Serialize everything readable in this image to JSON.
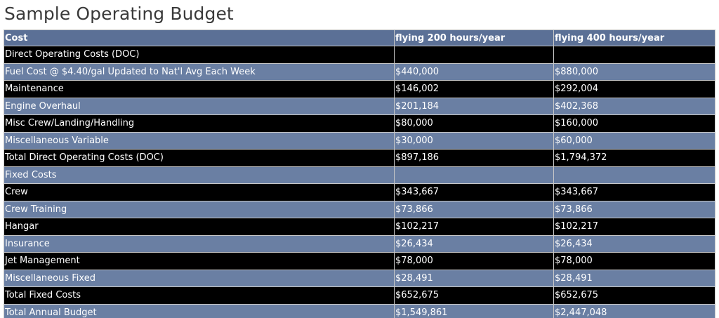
{
  "title": "Sample Operating Budget",
  "columns": [
    "Cost",
    "flying 200 hours/year",
    "flying 400 hours/year"
  ],
  "rows": [
    {
      "label": "Direct Operating Costs (DOC)",
      "v200": "",
      "v400": "",
      "style": "black"
    },
    {
      "label": "Fuel Cost @ $4.40/gal Updated to Nat'l Avg Each Week",
      "v200": "$440,000",
      "v400": "$880,000",
      "style": "blue"
    },
    {
      "label": "Maintenance",
      "v200": "$146,002",
      "v400": "$292,004",
      "style": "black"
    },
    {
      "label": "Engine Overhaul",
      "v200": "$201,184",
      "v400": "$402,368",
      "style": "blue"
    },
    {
      "label": "Misc Crew/Landing/Handling",
      "v200": "$80,000",
      "v400": "$160,000",
      "style": "black"
    },
    {
      "label": "Miscellaneous Variable",
      "v200": "$30,000",
      "v400": "$60,000",
      "style": "blue"
    },
    {
      "label": "Total Direct Operating Costs (DOC)",
      "v200": "$897,186",
      "v400": "$1,794,372",
      "style": "black"
    },
    {
      "label": "Fixed Costs",
      "v200": "",
      "v400": "",
      "style": "blue"
    },
    {
      "label": "Crew",
      "v200": "$343,667",
      "v400": "$343,667",
      "style": "black"
    },
    {
      "label": "Crew Training",
      "v200": "$73,866",
      "v400": "$73,866",
      "style": "blue"
    },
    {
      "label": "Hangar",
      "v200": "$102,217",
      "v400": "$102,217",
      "style": "black"
    },
    {
      "label": "Insurance",
      "v200": "$26,434",
      "v400": "$26,434",
      "style": "blue"
    },
    {
      "label": "Jet Management",
      "v200": "$78,000",
      "v400": "$78,000",
      "style": "black"
    },
    {
      "label": "Miscellaneous Fixed",
      "v200": "$28,491",
      "v400": "$28,491",
      "style": "blue"
    },
    {
      "label": "Total Fixed Costs",
      "v200": "$652,675",
      "v400": "$652,675",
      "style": "black"
    },
    {
      "label": "Total Annual Budget",
      "v200": "$1,549,861",
      "v400": "$2,447,048",
      "style": "blue"
    }
  ],
  "colors": {
    "header_bg": "#5b7096",
    "row_blue": "#6a7fa3",
    "row_black": "#000000",
    "text": "#ffffff",
    "title_text": "#3a3a3a"
  }
}
